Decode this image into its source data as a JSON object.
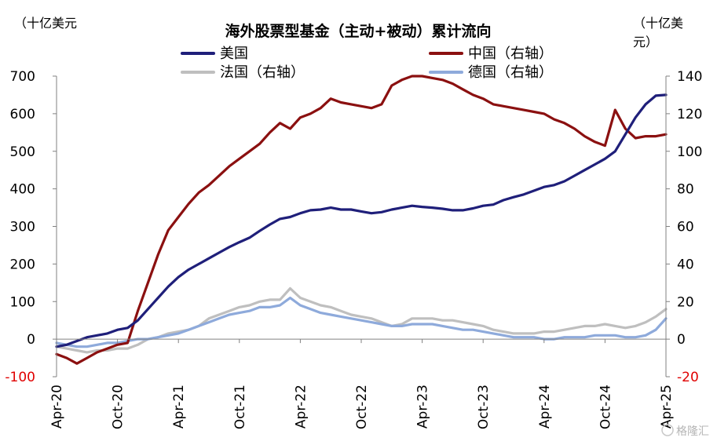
{
  "chart_data": {
    "type": "line",
    "title": "海外股票型基金（主动+被动）累计流向",
    "left_unit": "（十亿美元",
    "right_unit_line1": "（十亿美",
    "right_unit_line2": "元）",
    "y_left": {
      "min": -100,
      "max": 700,
      "ticks": [
        700,
        600,
        500,
        400,
        300,
        200,
        100,
        0,
        -100
      ]
    },
    "y_right": {
      "min": -20,
      "max": 140,
      "ticks": [
        140,
        120,
        100,
        80,
        60,
        40,
        20,
        0,
        -20
      ]
    },
    "x_ticks": [
      "Apr-20",
      "Oct-20",
      "Apr-21",
      "Oct-21",
      "Apr-22",
      "Oct-22",
      "Apr-23",
      "Oct-23",
      "Apr-24",
      "Oct-24",
      "Apr-25"
    ],
    "x_range": [
      "2020-04",
      "2025-04"
    ],
    "grid": false,
    "legend_placement": "top",
    "watermark": "格隆汇",
    "series": [
      {
        "name": "美国",
        "axis": "left",
        "color": "#1f1f7a",
        "points": [
          [
            "2020-04",
            -20
          ],
          [
            "2020-05",
            -15
          ],
          [
            "2020-06",
            -5
          ],
          [
            "2020-07",
            5
          ],
          [
            "2020-08",
            10
          ],
          [
            "2020-09",
            15
          ],
          [
            "2020-10",
            25
          ],
          [
            "2020-11",
            30
          ],
          [
            "2020-12",
            50
          ],
          [
            "2021-01",
            80
          ],
          [
            "2021-02",
            110
          ],
          [
            "2021-03",
            140
          ],
          [
            "2021-04",
            165
          ],
          [
            "2021-05",
            185
          ],
          [
            "2021-06",
            200
          ],
          [
            "2021-07",
            215
          ],
          [
            "2021-08",
            230
          ],
          [
            "2021-09",
            245
          ],
          [
            "2021-10",
            258
          ],
          [
            "2021-11",
            270
          ],
          [
            "2021-12",
            288
          ],
          [
            "2022-01",
            305
          ],
          [
            "2022-02",
            320
          ],
          [
            "2022-03",
            325
          ],
          [
            "2022-04",
            335
          ],
          [
            "2022-05",
            343
          ],
          [
            "2022-06",
            345
          ],
          [
            "2022-07",
            350
          ],
          [
            "2022-08",
            345
          ],
          [
            "2022-09",
            345
          ],
          [
            "2022-10",
            340
          ],
          [
            "2022-11",
            335
          ],
          [
            "2022-12",
            338
          ],
          [
            "2023-01",
            345
          ],
          [
            "2023-02",
            350
          ],
          [
            "2023-03",
            355
          ],
          [
            "2023-04",
            352
          ],
          [
            "2023-05",
            350
          ],
          [
            "2023-06",
            347
          ],
          [
            "2023-07",
            343
          ],
          [
            "2023-08",
            343
          ],
          [
            "2023-09",
            348
          ],
          [
            "2023-10",
            355
          ],
          [
            "2023-11",
            358
          ],
          [
            "2023-12",
            370
          ],
          [
            "2024-01",
            378
          ],
          [
            "2024-02",
            385
          ],
          [
            "2024-03",
            395
          ],
          [
            "2024-04",
            405
          ],
          [
            "2024-05",
            410
          ],
          [
            "2024-06",
            420
          ],
          [
            "2024-07",
            435
          ],
          [
            "2024-08",
            450
          ],
          [
            "2024-09",
            465
          ],
          [
            "2024-10",
            480
          ],
          [
            "2024-11",
            500
          ],
          [
            "2024-12",
            545
          ],
          [
            "2025-01",
            590
          ],
          [
            "2025-02",
            625
          ],
          [
            "2025-03",
            648
          ],
          [
            "2025-04",
            650
          ]
        ]
      },
      {
        "name": "中国（右轴）",
        "axis": "right",
        "color": "#8b1010",
        "points": [
          [
            "2020-04",
            -8
          ],
          [
            "2020-05",
            -10
          ],
          [
            "2020-06",
            -13
          ],
          [
            "2020-07",
            -10
          ],
          [
            "2020-08",
            -7
          ],
          [
            "2020-09",
            -5
          ],
          [
            "2020-10",
            -3
          ],
          [
            "2020-11",
            -2
          ],
          [
            "2020-12",
            15
          ],
          [
            "2021-01",
            30
          ],
          [
            "2021-02",
            45
          ],
          [
            "2021-03",
            58
          ],
          [
            "2021-04",
            65
          ],
          [
            "2021-05",
            72
          ],
          [
            "2021-06",
            78
          ],
          [
            "2021-07",
            82
          ],
          [
            "2021-08",
            87
          ],
          [
            "2021-09",
            92
          ],
          [
            "2021-10",
            96
          ],
          [
            "2021-11",
            100
          ],
          [
            "2021-12",
            104
          ],
          [
            "2022-01",
            110
          ],
          [
            "2022-02",
            115
          ],
          [
            "2022-03",
            112
          ],
          [
            "2022-04",
            118
          ],
          [
            "2022-05",
            120
          ],
          [
            "2022-06",
            123
          ],
          [
            "2022-07",
            128
          ],
          [
            "2022-08",
            126
          ],
          [
            "2022-09",
            125
          ],
          [
            "2022-10",
            124
          ],
          [
            "2022-11",
            123
          ],
          [
            "2022-12",
            125
          ],
          [
            "2023-01",
            135
          ],
          [
            "2023-02",
            138
          ],
          [
            "2023-03",
            140
          ],
          [
            "2023-04",
            140
          ],
          [
            "2023-05",
            139
          ],
          [
            "2023-06",
            138
          ],
          [
            "2023-07",
            136
          ],
          [
            "2023-08",
            133
          ],
          [
            "2023-09",
            130
          ],
          [
            "2023-10",
            128
          ],
          [
            "2023-11",
            125
          ],
          [
            "2023-12",
            124
          ],
          [
            "2024-01",
            123
          ],
          [
            "2024-02",
            122
          ],
          [
            "2024-03",
            121
          ],
          [
            "2024-04",
            120
          ],
          [
            "2024-05",
            117
          ],
          [
            "2024-06",
            115
          ],
          [
            "2024-07",
            112
          ],
          [
            "2024-08",
            108
          ],
          [
            "2024-09",
            105
          ],
          [
            "2024-10",
            103
          ],
          [
            "2024-11",
            122
          ],
          [
            "2024-12",
            112
          ],
          [
            "2025-01",
            107
          ],
          [
            "2025-02",
            108
          ],
          [
            "2025-03",
            108
          ],
          [
            "2025-04",
            109
          ]
        ]
      },
      {
        "name": "法国（右轴）",
        "axis": "right",
        "color": "#bfbfbf",
        "points": [
          [
            "2020-04",
            -4
          ],
          [
            "2020-05",
            -5
          ],
          [
            "2020-06",
            -6
          ],
          [
            "2020-07",
            -7
          ],
          [
            "2020-08",
            -6
          ],
          [
            "2020-09",
            -6
          ],
          [
            "2020-10",
            -5
          ],
          [
            "2020-11",
            -5
          ],
          [
            "2020-12",
            -3
          ],
          [
            "2021-01",
            0
          ],
          [
            "2021-02",
            1
          ],
          [
            "2021-03",
            3
          ],
          [
            "2021-04",
            4
          ],
          [
            "2021-05",
            5
          ],
          [
            "2021-06",
            7
          ],
          [
            "2021-07",
            11
          ],
          [
            "2021-08",
            13
          ],
          [
            "2021-09",
            15
          ],
          [
            "2021-10",
            17
          ],
          [
            "2021-11",
            18
          ],
          [
            "2021-12",
            20
          ],
          [
            "2022-01",
            21
          ],
          [
            "2022-02",
            21
          ],
          [
            "2022-03",
            27
          ],
          [
            "2022-04",
            22
          ],
          [
            "2022-05",
            20
          ],
          [
            "2022-06",
            18
          ],
          [
            "2022-07",
            17
          ],
          [
            "2022-08",
            15
          ],
          [
            "2022-09",
            13
          ],
          [
            "2022-10",
            12
          ],
          [
            "2022-11",
            11
          ],
          [
            "2022-12",
            9
          ],
          [
            "2023-01",
            7
          ],
          [
            "2023-02",
            8
          ],
          [
            "2023-03",
            11
          ],
          [
            "2023-04",
            11
          ],
          [
            "2023-05",
            11
          ],
          [
            "2023-06",
            10
          ],
          [
            "2023-07",
            10
          ],
          [
            "2023-08",
            9
          ],
          [
            "2023-09",
            8
          ],
          [
            "2023-10",
            7
          ],
          [
            "2023-11",
            5
          ],
          [
            "2023-12",
            4
          ],
          [
            "2024-01",
            3
          ],
          [
            "2024-02",
            3
          ],
          [
            "2024-03",
            3
          ],
          [
            "2024-04",
            4
          ],
          [
            "2024-05",
            4
          ],
          [
            "2024-06",
            5
          ],
          [
            "2024-07",
            6
          ],
          [
            "2024-08",
            7
          ],
          [
            "2024-09",
            7
          ],
          [
            "2024-10",
            8
          ],
          [
            "2024-11",
            7
          ],
          [
            "2024-12",
            6
          ],
          [
            "2025-01",
            7
          ],
          [
            "2025-02",
            9
          ],
          [
            "2025-03",
            12
          ],
          [
            "2025-04",
            16
          ]
        ]
      },
      {
        "name": "德国（右轴）",
        "axis": "right",
        "color": "#8eaadb",
        "points": [
          [
            "2020-04",
            -2
          ],
          [
            "2020-05",
            -3
          ],
          [
            "2020-06",
            -4
          ],
          [
            "2020-07",
            -4
          ],
          [
            "2020-08",
            -3
          ],
          [
            "2020-09",
            -2
          ],
          [
            "2020-10",
            -2
          ],
          [
            "2020-11",
            -1
          ],
          [
            "2020-12",
            0
          ],
          [
            "2021-01",
            0
          ],
          [
            "2021-02",
            1
          ],
          [
            "2021-03",
            2
          ],
          [
            "2021-04",
            3
          ],
          [
            "2021-05",
            5
          ],
          [
            "2021-06",
            7
          ],
          [
            "2021-07",
            9
          ],
          [
            "2021-08",
            11
          ],
          [
            "2021-09",
            13
          ],
          [
            "2021-10",
            14
          ],
          [
            "2021-11",
            15
          ],
          [
            "2021-12",
            17
          ],
          [
            "2022-01",
            17
          ],
          [
            "2022-02",
            18
          ],
          [
            "2022-03",
            22
          ],
          [
            "2022-04",
            18
          ],
          [
            "2022-05",
            16
          ],
          [
            "2022-06",
            14
          ],
          [
            "2022-07",
            13
          ],
          [
            "2022-08",
            12
          ],
          [
            "2022-09",
            11
          ],
          [
            "2022-10",
            10
          ],
          [
            "2022-11",
            9
          ],
          [
            "2022-12",
            8
          ],
          [
            "2023-01",
            7
          ],
          [
            "2023-02",
            7
          ],
          [
            "2023-03",
            8
          ],
          [
            "2023-04",
            8
          ],
          [
            "2023-05",
            8
          ],
          [
            "2023-06",
            7
          ],
          [
            "2023-07",
            6
          ],
          [
            "2023-08",
            5
          ],
          [
            "2023-09",
            5
          ],
          [
            "2023-10",
            4
          ],
          [
            "2023-11",
            3
          ],
          [
            "2023-12",
            2
          ],
          [
            "2024-01",
            1
          ],
          [
            "2024-02",
            1
          ],
          [
            "2024-03",
            1
          ],
          [
            "2024-04",
            0
          ],
          [
            "2024-05",
            0
          ],
          [
            "2024-06",
            1
          ],
          [
            "2024-07",
            1
          ],
          [
            "2024-08",
            1
          ],
          [
            "2024-09",
            2
          ],
          [
            "2024-10",
            2
          ],
          [
            "2024-11",
            2
          ],
          [
            "2024-12",
            1
          ],
          [
            "2025-01",
            1
          ],
          [
            "2025-02",
            2
          ],
          [
            "2025-03",
            5
          ],
          [
            "2025-04",
            11
          ]
        ]
      }
    ]
  }
}
